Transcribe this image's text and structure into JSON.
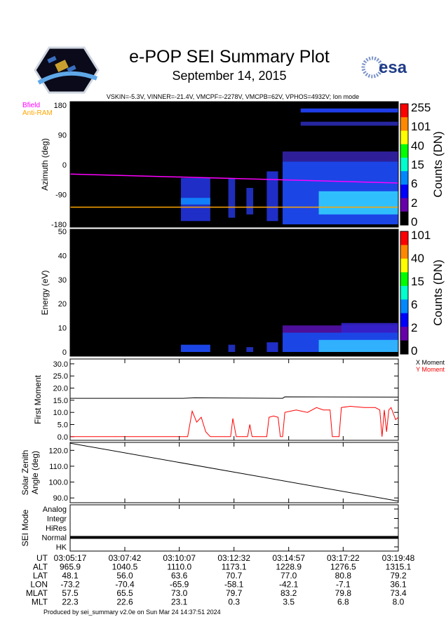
{
  "header": {
    "title": "e-POP SEI Summary Plot",
    "date": "September 14, 2015",
    "subtitle": "VSKIN=-5.3V, VINNER=-21.4V, VMCPF=-2278V, VMCPB=62V, VPHOS=4932V; Ion mode",
    "left_logo": "e-POP CASSIOPE",
    "right_logo": "esa"
  },
  "footer": "Produced by sei_summary v2.0e on Sun Mar 24 14:37:51 2024",
  "chart_data": [
    {
      "type": "heatmap",
      "ylabel": "Azimuth (deg)",
      "ylim": [
        -180,
        180
      ],
      "yticks": [
        "180",
        "90",
        "0",
        "-90",
        "-180"
      ],
      "colorbar_label": "Counts (DN)",
      "colorbar_ticks": [
        "255",
        "101",
        "40",
        "15",
        "6",
        "2",
        "0"
      ],
      "legend": [
        {
          "name": "Bfield",
          "color": "#ff00ff"
        },
        {
          "name": "Anti-RAM",
          "color": "#ffa500"
        }
      ],
      "lines": [
        {
          "name": "Bfield",
          "color": "#ff00ff",
          "t": [
            0,
            14.52
          ],
          "y": [
            -28,
            -55
          ]
        },
        {
          "name": "Anti-RAM",
          "color": "#ffa500",
          "t": [
            0,
            14.52
          ],
          "y": [
            -128,
            -128
          ]
        }
      ],
      "blocks": [
        [
          4.9,
          6.2,
          -170,
          -40,
          "#2233dd"
        ],
        [
          4.9,
          6.2,
          -120,
          -100,
          "#1188ff"
        ],
        [
          7.0,
          7.3,
          -160,
          -40,
          "#2233cc"
        ],
        [
          7.8,
          8.1,
          -150,
          -70,
          "#2233cc"
        ],
        [
          8.7,
          9.2,
          -170,
          -20,
          "#2233dd"
        ],
        [
          9.4,
          14.52,
          -180,
          10,
          "#1f4cff"
        ],
        [
          11.0,
          14.52,
          -150,
          -80,
          "#33ccff"
        ],
        [
          9.4,
          14.52,
          10,
          40,
          "#3322aa"
        ],
        [
          10.2,
          14.52,
          118,
          130,
          "#2a2ab0"
        ],
        [
          10.2,
          14.52,
          158,
          170,
          "#2244ff"
        ]
      ]
    },
    {
      "type": "heatmap",
      "ylabel": "Energy (eV)",
      "ylim": [
        0,
        50
      ],
      "yticks": [
        "50",
        "40",
        "30",
        "20",
        "10",
        "0"
      ],
      "colorbar_label": "Counts (DN)",
      "colorbar_ticks": [
        "101",
        "40",
        "15",
        "6",
        "2",
        "0"
      ],
      "blocks": [
        [
          4.9,
          6.2,
          0,
          3,
          "#1f4cff"
        ],
        [
          7.0,
          7.3,
          0,
          3,
          "#2233cc"
        ],
        [
          7.8,
          8.1,
          0,
          2,
          "#2233cc"
        ],
        [
          8.7,
          9.2,
          0,
          4,
          "#2233dd"
        ],
        [
          9.4,
          14.52,
          0,
          8,
          "#1f4cff"
        ],
        [
          9.4,
          14.52,
          8,
          11,
          "#5511aa"
        ],
        [
          11.0,
          14.52,
          0,
          5,
          "#33bbff"
        ],
        [
          12.0,
          14.52,
          8,
          12,
          "#3322cc"
        ]
      ]
    },
    {
      "type": "line",
      "ylabel": "First Moment",
      "ylim": [
        -1.5,
        32
      ],
      "yticks": [
        "30.0",
        "25.0",
        "20.0",
        "15.0",
        "10.0",
        "5.0",
        "0.0"
      ],
      "series": [
        {
          "name": "X Moment",
          "color": "#000000",
          "t": [
            0,
            5,
            5.5,
            9.4,
            9.5,
            14.52
          ],
          "y": [
            15.8,
            15.8,
            16.0,
            15.8,
            16.4,
            16.3
          ]
        },
        {
          "name": "Y Moment",
          "color": "#ff0000",
          "t": [
            0,
            5.2,
            5.4,
            5.6,
            5.8,
            6.0,
            6.2,
            7.1,
            7.2,
            7.35,
            7.85,
            7.95,
            8.05,
            8.7,
            8.8,
            9.0,
            9.2,
            9.3,
            9.4,
            9.5,
            10.0,
            10.5,
            10.9,
            11.2,
            11.5,
            11.6,
            11.9,
            12.0,
            12.4,
            13.0,
            13.5,
            13.7,
            13.8,
            13.9,
            14.0,
            14.1,
            14.2,
            14.4,
            14.52
          ],
          "y": [
            0,
            0,
            10.5,
            6,
            8,
            2,
            0,
            0,
            7.5,
            0,
            0,
            5,
            0,
            0,
            8,
            8.5,
            8,
            0,
            0,
            10,
            11,
            10,
            12,
            11,
            11,
            0,
            0,
            12,
            12.5,
            12,
            12,
            11,
            0,
            11,
            2,
            11,
            12,
            7,
            8
          ]
        }
      ]
    },
    {
      "type": "line",
      "ylabel": "Solar Zenith Angle (deg)",
      "ylim": [
        87,
        125
      ],
      "yticks": [
        "120.0",
        "110.0",
        "100.0",
        "90.0"
      ],
      "series": [
        {
          "name": "SZA",
          "color": "#000000",
          "t": [
            0,
            14.52
          ],
          "y": [
            124.5,
            88
          ]
        }
      ]
    },
    {
      "type": "line",
      "ylabel": "SEI Mode",
      "categories": [
        "Analog",
        "Integr",
        "HiRes",
        "Normal",
        "HK"
      ],
      "series": [
        {
          "name": "Mode",
          "value": "Normal"
        }
      ]
    }
  ],
  "time_table": {
    "row_labels": [
      "UT",
      "ALT",
      "LAT",
      "LON",
      "MLAT",
      "MLT"
    ],
    "t": [
      0,
      2.42,
      4.83,
      7.25,
      9.67,
      12.08,
      14.52
    ],
    "columns": [
      [
        "03:05:17",
        "965.9",
        "48.1",
        "-73.2",
        "57.5",
        "22.3"
      ],
      [
        "03:07:42",
        "1040.5",
        "56.0",
        "-70.4",
        "65.5",
        "22.6"
      ],
      [
        "03:10:07",
        "1110.0",
        "63.6",
        "-65.9",
        "73.0",
        "23.1"
      ],
      [
        "03:12:32",
        "1173.1",
        "70.7",
        "-58.1",
        "79.7",
        "0.3"
      ],
      [
        "03:14:57",
        "1228.9",
        "77.0",
        "-42.1",
        "83.2",
        "3.5"
      ],
      [
        "03:17:22",
        "1276.5",
        "80.8",
        "-7.1",
        "79.8",
        "6.8"
      ],
      [
        "03:19:48",
        "1315.1",
        "79.2",
        "36.1",
        "73.4",
        "8.0"
      ]
    ]
  }
}
